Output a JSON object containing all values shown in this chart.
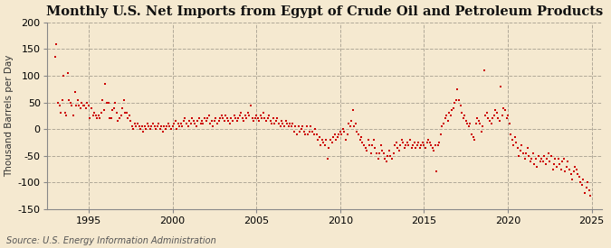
{
  "title": "Monthly U.S. Net Imports from Egypt of Crude Oil and Petroleum Products",
  "ylabel": "Thousand Barrels per Day",
  "source": "Source: U.S. Energy Information Administration",
  "ylim": [
    -150,
    200
  ],
  "yticks": [
    -150,
    -100,
    -50,
    0,
    50,
    100,
    150,
    200
  ],
  "xlim_start": 1992.5,
  "xlim_end": 2025.6,
  "xticks": [
    1995,
    2000,
    2005,
    2010,
    2015,
    2020,
    2025
  ],
  "background_color": "#f5e9d0",
  "plot_bg_color": "#f5e9d0",
  "marker_color": "#cc0000",
  "marker_size": 4,
  "title_fontsize": 10.5,
  "label_fontsize": 7.5,
  "tick_fontsize": 8,
  "source_fontsize": 7,
  "grid_color": "#b0a898",
  "grid_style": "--",
  "grid_alpha": 1.0,
  "data": [
    [
      1993.0,
      135
    ],
    [
      1993.08,
      160
    ],
    [
      1993.17,
      50
    ],
    [
      1993.25,
      45
    ],
    [
      1993.33,
      30
    ],
    [
      1993.42,
      55
    ],
    [
      1993.5,
      100
    ],
    [
      1993.58,
      30
    ],
    [
      1993.67,
      25
    ],
    [
      1993.75,
      105
    ],
    [
      1993.83,
      55
    ],
    [
      1993.92,
      50
    ],
    [
      1994.0,
      45
    ],
    [
      1994.08,
      25
    ],
    [
      1994.17,
      70
    ],
    [
      1994.25,
      45
    ],
    [
      1994.33,
      55
    ],
    [
      1994.42,
      45
    ],
    [
      1994.5,
      40
    ],
    [
      1994.58,
      50
    ],
    [
      1994.67,
      45
    ],
    [
      1994.75,
      45
    ],
    [
      1994.83,
      40
    ],
    [
      1994.92,
      50
    ],
    [
      1995.0,
      45
    ],
    [
      1995.08,
      20
    ],
    [
      1995.17,
      40
    ],
    [
      1995.25,
      25
    ],
    [
      1995.33,
      30
    ],
    [
      1995.42,
      25
    ],
    [
      1995.5,
      20
    ],
    [
      1995.58,
      25
    ],
    [
      1995.67,
      20
    ],
    [
      1995.75,
      30
    ],
    [
      1995.83,
      55
    ],
    [
      1995.92,
      35
    ],
    [
      1996.0,
      85
    ],
    [
      1996.08,
      50
    ],
    [
      1996.17,
      50
    ],
    [
      1996.25,
      20
    ],
    [
      1996.33,
      20
    ],
    [
      1996.42,
      35
    ],
    [
      1996.5,
      40
    ],
    [
      1996.58,
      50
    ],
    [
      1996.67,
      30
    ],
    [
      1996.75,
      15
    ],
    [
      1996.83,
      20
    ],
    [
      1996.92,
      25
    ],
    [
      1997.0,
      40
    ],
    [
      1997.08,
      55
    ],
    [
      1997.17,
      30
    ],
    [
      1997.25,
      30
    ],
    [
      1997.33,
      20
    ],
    [
      1997.42,
      25
    ],
    [
      1997.5,
      15
    ],
    [
      1997.58,
      5
    ],
    [
      1997.67,
      0
    ],
    [
      1997.75,
      10
    ],
    [
      1997.83,
      5
    ],
    [
      1997.92,
      10
    ],
    [
      1998.0,
      5
    ],
    [
      1998.08,
      0
    ],
    [
      1998.17,
      5
    ],
    [
      1998.25,
      -5
    ],
    [
      1998.33,
      5
    ],
    [
      1998.42,
      0
    ],
    [
      1998.5,
      10
    ],
    [
      1998.58,
      5
    ],
    [
      1998.67,
      0
    ],
    [
      1998.75,
      5
    ],
    [
      1998.83,
      10
    ],
    [
      1998.92,
      5
    ],
    [
      1999.0,
      0
    ],
    [
      1999.08,
      5
    ],
    [
      1999.17,
      10
    ],
    [
      1999.25,
      0
    ],
    [
      1999.33,
      5
    ],
    [
      1999.42,
      -5
    ],
    [
      1999.5,
      5
    ],
    [
      1999.58,
      0
    ],
    [
      1999.67,
      5
    ],
    [
      1999.75,
      10
    ],
    [
      1999.83,
      5
    ],
    [
      1999.92,
      0
    ],
    [
      2000.0,
      5
    ],
    [
      2000.08,
      10
    ],
    [
      2000.17,
      15
    ],
    [
      2000.25,
      0
    ],
    [
      2000.33,
      10
    ],
    [
      2000.42,
      5
    ],
    [
      2000.5,
      10
    ],
    [
      2000.58,
      5
    ],
    [
      2000.67,
      15
    ],
    [
      2000.75,
      20
    ],
    [
      2000.83,
      10
    ],
    [
      2000.92,
      5
    ],
    [
      2001.0,
      15
    ],
    [
      2001.08,
      10
    ],
    [
      2001.17,
      20
    ],
    [
      2001.25,
      15
    ],
    [
      2001.33,
      10
    ],
    [
      2001.42,
      5
    ],
    [
      2001.5,
      15
    ],
    [
      2001.58,
      20
    ],
    [
      2001.67,
      10
    ],
    [
      2001.75,
      15
    ],
    [
      2001.83,
      10
    ],
    [
      2001.92,
      20
    ],
    [
      2002.0,
      15
    ],
    [
      2002.08,
      20
    ],
    [
      2002.17,
      25
    ],
    [
      2002.25,
      10
    ],
    [
      2002.33,
      15
    ],
    [
      2002.42,
      5
    ],
    [
      2002.5,
      15
    ],
    [
      2002.58,
      20
    ],
    [
      2002.67,
      10
    ],
    [
      2002.75,
      15
    ],
    [
      2002.83,
      20
    ],
    [
      2002.92,
      25
    ],
    [
      2003.0,
      20
    ],
    [
      2003.08,
      15
    ],
    [
      2003.17,
      25
    ],
    [
      2003.25,
      20
    ],
    [
      2003.33,
      15
    ],
    [
      2003.42,
      10
    ],
    [
      2003.5,
      20
    ],
    [
      2003.58,
      15
    ],
    [
      2003.67,
      25
    ],
    [
      2003.75,
      20
    ],
    [
      2003.83,
      15
    ],
    [
      2003.92,
      20
    ],
    [
      2004.0,
      25
    ],
    [
      2004.08,
      30
    ],
    [
      2004.17,
      20
    ],
    [
      2004.25,
      15
    ],
    [
      2004.33,
      25
    ],
    [
      2004.42,
      20
    ],
    [
      2004.5,
      30
    ],
    [
      2004.58,
      25
    ],
    [
      2004.67,
      45
    ],
    [
      2004.75,
      20
    ],
    [
      2004.83,
      15
    ],
    [
      2004.92,
      20
    ],
    [
      2005.0,
      25
    ],
    [
      2005.08,
      20
    ],
    [
      2005.17,
      15
    ],
    [
      2005.25,
      25
    ],
    [
      2005.33,
      20
    ],
    [
      2005.42,
      30
    ],
    [
      2005.5,
      20
    ],
    [
      2005.58,
      15
    ],
    [
      2005.67,
      20
    ],
    [
      2005.75,
      25
    ],
    [
      2005.83,
      15
    ],
    [
      2005.92,
      10
    ],
    [
      2006.0,
      20
    ],
    [
      2006.08,
      10
    ],
    [
      2006.17,
      15
    ],
    [
      2006.25,
      20
    ],
    [
      2006.33,
      10
    ],
    [
      2006.42,
      5
    ],
    [
      2006.5,
      15
    ],
    [
      2006.58,
      10
    ],
    [
      2006.67,
      5
    ],
    [
      2006.75,
      15
    ],
    [
      2006.83,
      10
    ],
    [
      2006.92,
      5
    ],
    [
      2007.0,
      10
    ],
    [
      2007.08,
      5
    ],
    [
      2007.17,
      10
    ],
    [
      2007.25,
      -5
    ],
    [
      2007.33,
      5
    ],
    [
      2007.42,
      -10
    ],
    [
      2007.5,
      5
    ],
    [
      2007.58,
      -5
    ],
    [
      2007.67,
      0
    ],
    [
      2007.75,
      5
    ],
    [
      2007.83,
      -5
    ],
    [
      2007.92,
      -10
    ],
    [
      2008.0,
      5
    ],
    [
      2008.08,
      -10
    ],
    [
      2008.17,
      -5
    ],
    [
      2008.25,
      5
    ],
    [
      2008.33,
      -5
    ],
    [
      2008.42,
      -10
    ],
    [
      2008.5,
      0
    ],
    [
      2008.58,
      -10
    ],
    [
      2008.67,
      -20
    ],
    [
      2008.75,
      -15
    ],
    [
      2008.83,
      -30
    ],
    [
      2008.92,
      -20
    ],
    [
      2009.0,
      -25
    ],
    [
      2009.08,
      -30
    ],
    [
      2009.17,
      -20
    ],
    [
      2009.25,
      -55
    ],
    [
      2009.33,
      -35
    ],
    [
      2009.42,
      -20
    ],
    [
      2009.5,
      -25
    ],
    [
      2009.58,
      -15
    ],
    [
      2009.67,
      -10
    ],
    [
      2009.75,
      -20
    ],
    [
      2009.83,
      -15
    ],
    [
      2009.92,
      -10
    ],
    [
      2010.0,
      -5
    ],
    [
      2010.08,
      -10
    ],
    [
      2010.17,
      0
    ],
    [
      2010.25,
      -5
    ],
    [
      2010.33,
      -20
    ],
    [
      2010.42,
      -10
    ],
    [
      2010.5,
      10
    ],
    [
      2010.58,
      5
    ],
    [
      2010.67,
      15
    ],
    [
      2010.75,
      35
    ],
    [
      2010.83,
      5
    ],
    [
      2010.92,
      10
    ],
    [
      2011.0,
      -5
    ],
    [
      2011.08,
      -10
    ],
    [
      2011.17,
      -20
    ],
    [
      2011.25,
      -15
    ],
    [
      2011.33,
      -25
    ],
    [
      2011.42,
      -30
    ],
    [
      2011.5,
      -35
    ],
    [
      2011.58,
      -40
    ],
    [
      2011.67,
      -20
    ],
    [
      2011.75,
      -30
    ],
    [
      2011.83,
      -45
    ],
    [
      2011.92,
      -30
    ],
    [
      2012.0,
      -20
    ],
    [
      2012.08,
      -35
    ],
    [
      2012.17,
      -45
    ],
    [
      2012.25,
      -55
    ],
    [
      2012.33,
      -45
    ],
    [
      2012.42,
      -30
    ],
    [
      2012.5,
      -40
    ],
    [
      2012.58,
      -45
    ],
    [
      2012.67,
      -55
    ],
    [
      2012.75,
      -60
    ],
    [
      2012.83,
      -50
    ],
    [
      2012.92,
      -40
    ],
    [
      2013.0,
      -50
    ],
    [
      2013.08,
      -55
    ],
    [
      2013.17,
      -45
    ],
    [
      2013.25,
      -30
    ],
    [
      2013.33,
      -25
    ],
    [
      2013.42,
      -35
    ],
    [
      2013.5,
      -40
    ],
    [
      2013.58,
      -30
    ],
    [
      2013.67,
      -20
    ],
    [
      2013.75,
      -25
    ],
    [
      2013.83,
      -35
    ],
    [
      2013.92,
      -30
    ],
    [
      2014.0,
      -25
    ],
    [
      2014.08,
      -30
    ],
    [
      2014.17,
      -20
    ],
    [
      2014.25,
      -35
    ],
    [
      2014.33,
      -30
    ],
    [
      2014.42,
      -25
    ],
    [
      2014.5,
      -35
    ],
    [
      2014.58,
      -30
    ],
    [
      2014.67,
      -25
    ],
    [
      2014.75,
      -35
    ],
    [
      2014.83,
      -30
    ],
    [
      2014.92,
      -25
    ],
    [
      2015.0,
      -30
    ],
    [
      2015.08,
      -35
    ],
    [
      2015.17,
      -25
    ],
    [
      2015.25,
      -20
    ],
    [
      2015.33,
      -25
    ],
    [
      2015.42,
      -30
    ],
    [
      2015.5,
      -35
    ],
    [
      2015.58,
      -40
    ],
    [
      2015.67,
      -30
    ],
    [
      2015.75,
      -80
    ],
    [
      2015.83,
      -30
    ],
    [
      2015.92,
      -25
    ],
    [
      2016.0,
      -10
    ],
    [
      2016.08,
      5
    ],
    [
      2016.17,
      10
    ],
    [
      2016.25,
      20
    ],
    [
      2016.33,
      25
    ],
    [
      2016.42,
      15
    ],
    [
      2016.5,
      30
    ],
    [
      2016.58,
      25
    ],
    [
      2016.67,
      35
    ],
    [
      2016.75,
      40
    ],
    [
      2016.83,
      50
    ],
    [
      2016.92,
      55
    ],
    [
      2017.0,
      75
    ],
    [
      2017.08,
      55
    ],
    [
      2017.17,
      45
    ],
    [
      2017.25,
      30
    ],
    [
      2017.33,
      20
    ],
    [
      2017.42,
      25
    ],
    [
      2017.5,
      15
    ],
    [
      2017.58,
      10
    ],
    [
      2017.67,
      5
    ],
    [
      2017.75,
      10
    ],
    [
      2017.83,
      -10
    ],
    [
      2017.92,
      -15
    ],
    [
      2018.0,
      -20
    ],
    [
      2018.08,
      10
    ],
    [
      2018.17,
      20
    ],
    [
      2018.25,
      15
    ],
    [
      2018.33,
      10
    ],
    [
      2018.42,
      -5
    ],
    [
      2018.5,
      5
    ],
    [
      2018.58,
      110
    ],
    [
      2018.67,
      25
    ],
    [
      2018.75,
      30
    ],
    [
      2018.83,
      20
    ],
    [
      2018.92,
      15
    ],
    [
      2019.0,
      10
    ],
    [
      2019.08,
      20
    ],
    [
      2019.17,
      25
    ],
    [
      2019.25,
      35
    ],
    [
      2019.33,
      30
    ],
    [
      2019.42,
      20
    ],
    [
      2019.5,
      15
    ],
    [
      2019.58,
      80
    ],
    [
      2019.67,
      25
    ],
    [
      2019.75,
      40
    ],
    [
      2019.83,
      35
    ],
    [
      2019.92,
      20
    ],
    [
      2020.0,
      25
    ],
    [
      2020.08,
      10
    ],
    [
      2020.17,
      -10
    ],
    [
      2020.25,
      -20
    ],
    [
      2020.33,
      -30
    ],
    [
      2020.42,
      -15
    ],
    [
      2020.5,
      -25
    ],
    [
      2020.58,
      -35
    ],
    [
      2020.67,
      -50
    ],
    [
      2020.75,
      -40
    ],
    [
      2020.83,
      -30
    ],
    [
      2020.92,
      -45
    ],
    [
      2021.0,
      -55
    ],
    [
      2021.08,
      -45
    ],
    [
      2021.17,
      -35
    ],
    [
      2021.25,
      -50
    ],
    [
      2021.33,
      -60
    ],
    [
      2021.42,
      -55
    ],
    [
      2021.5,
      -45
    ],
    [
      2021.58,
      -65
    ],
    [
      2021.67,
      -55
    ],
    [
      2021.75,
      -70
    ],
    [
      2021.83,
      -50
    ],
    [
      2021.92,
      -60
    ],
    [
      2022.0,
      -55
    ],
    [
      2022.08,
      -60
    ],
    [
      2022.17,
      -50
    ],
    [
      2022.25,
      -65
    ],
    [
      2022.33,
      -55
    ],
    [
      2022.42,
      -45
    ],
    [
      2022.5,
      -60
    ],
    [
      2022.58,
      -50
    ],
    [
      2022.67,
      -75
    ],
    [
      2022.75,
      -65
    ],
    [
      2022.83,
      -55
    ],
    [
      2022.92,
      -70
    ],
    [
      2023.0,
      -55
    ],
    [
      2023.08,
      -65
    ],
    [
      2023.17,
      -75
    ],
    [
      2023.25,
      -60
    ],
    [
      2023.33,
      -55
    ],
    [
      2023.42,
      -80
    ],
    [
      2023.5,
      -70
    ],
    [
      2023.58,
      -60
    ],
    [
      2023.67,
      -75
    ],
    [
      2023.75,
      -85
    ],
    [
      2023.83,
      -95
    ],
    [
      2023.92,
      -80
    ],
    [
      2024.0,
      -70
    ],
    [
      2024.08,
      -75
    ],
    [
      2024.17,
      -85
    ],
    [
      2024.25,
      -90
    ],
    [
      2024.33,
      -100
    ],
    [
      2024.42,
      -105
    ],
    [
      2024.5,
      -95
    ],
    [
      2024.58,
      -120
    ],
    [
      2024.67,
      -110
    ],
    [
      2024.75,
      -100
    ],
    [
      2024.83,
      -115
    ],
    [
      2024.92,
      -125
    ]
  ]
}
